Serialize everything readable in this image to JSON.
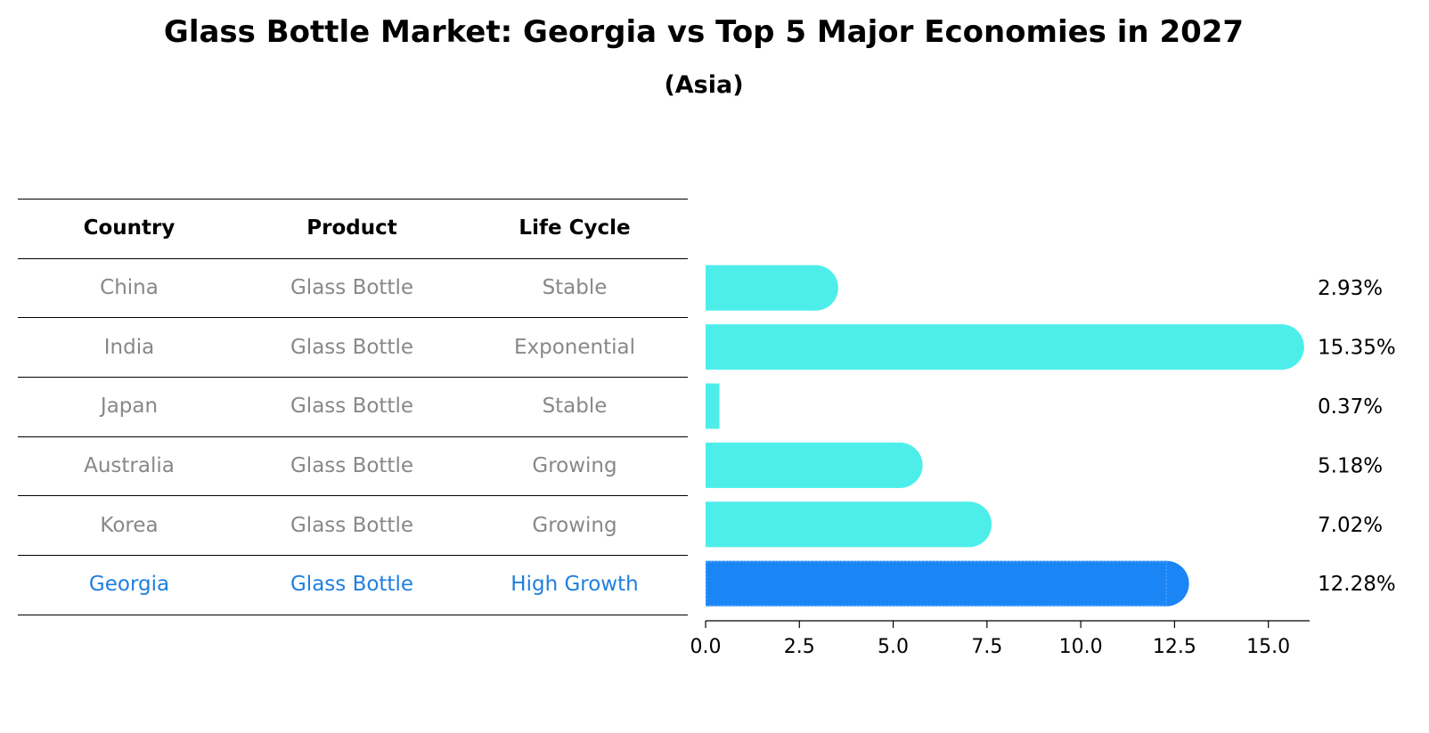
{
  "title": "Glass Bottle Market: Georgia vs Top 5 Major Economies in 2027",
  "subtitle": "(Asia)",
  "table": {
    "headers": [
      "Country",
      "Product",
      "Life Cycle"
    ],
    "rows": [
      {
        "country": "China",
        "product": "Glass Bottle",
        "life_cycle": "Stable"
      },
      {
        "country": "India",
        "product": "Glass Bottle",
        "life_cycle": "Exponential"
      },
      {
        "country": "Japan",
        "product": "Glass Bottle",
        "life_cycle": "Stable"
      },
      {
        "country": "Australia",
        "product": "Glass Bottle",
        "life_cycle": "Growing"
      },
      {
        "country": "Korea",
        "product": "Glass Bottle",
        "life_cycle": "Growing"
      },
      {
        "country": "Georgia",
        "product": "Glass Bottle",
        "life_cycle": "High Growth"
      }
    ]
  },
  "colors": {
    "bar": "#4deeea",
    "highlight_bar": "#1a85f5",
    "body_text": "#888888",
    "highlight_text": "#1f7fe0"
  },
  "chart_data": {
    "type": "bar",
    "orientation": "horizontal",
    "categories": [
      "China",
      "India",
      "Japan",
      "Australia",
      "Korea",
      "Georgia"
    ],
    "values": [
      2.93,
      15.35,
      0.37,
      5.18,
      7.02,
      12.28
    ],
    "value_labels": [
      "2.93%",
      "15.35%",
      "0.37%",
      "5.18%",
      "7.02%",
      "12.28%"
    ],
    "highlight_index": 5,
    "xlim": [
      0,
      16.1
    ],
    "xticks": [
      0.0,
      2.5,
      5.0,
      7.5,
      10.0,
      12.5,
      15.0
    ],
    "xtick_labels": [
      "0.0",
      "2.5",
      "5.0",
      "7.5",
      "10.0",
      "12.5",
      "15.0"
    ],
    "xlabel": "",
    "ylabel": "",
    "grid": false,
    "legend": "none"
  }
}
